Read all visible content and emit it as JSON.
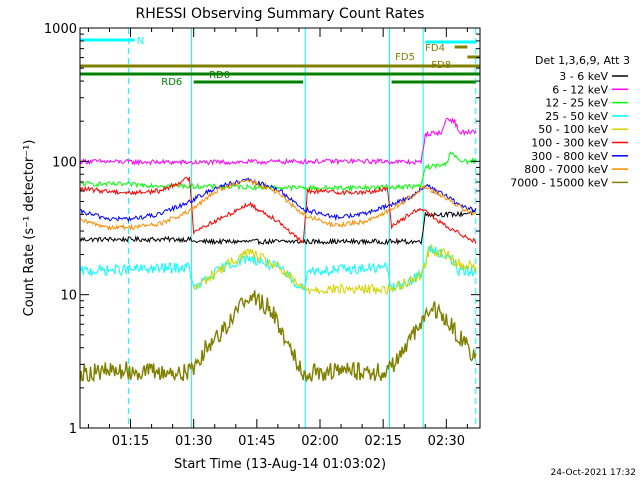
{
  "chart_data": {
    "type": "line",
    "title": "RHESSI Observing Summary Count Rates",
    "xlabel": "Start Time (13-Aug-14 01:03:02)",
    "ylabel": "Count Rate (s⁻¹ detector⁻¹)",
    "y_scale": "log",
    "ylim": [
      1,
      1000
    ],
    "xlim": [
      "01:03",
      "02:38"
    ],
    "x_ticks": [
      "01:15",
      "01:30",
      "01:45",
      "02:00",
      "02:15",
      "02:30"
    ],
    "y_ticks": [
      "1",
      "10",
      "100",
      "1000"
    ],
    "grid": false,
    "legend_title": "Det 1,3,6,9, Att 3",
    "legend_placement": "right",
    "timestamp": "24-Oct-2021 17:32",
    "colors": {
      "3-6": "#000000",
      "6-12": "#ff00ff",
      "12-25": "#00ff00",
      "25-50": "#00ffff",
      "50-100": "#d4d400",
      "100-300": "#ff0000",
      "300-800": "#0000ff",
      "800-7000": "#ff8c00",
      "7000-15000": "#808000",
      "flag_cyan": "#00ffff",
      "flag_olive": "#808000",
      "flag_green": "#007f00"
    },
    "series": [
      {
        "name": "3 - 6 keV",
        "key": "3-6",
        "points": [
          [
            "01:03",
            26
          ],
          [
            "01:29",
            26
          ],
          [
            "01:30",
            25
          ],
          [
            "02:24",
            25
          ],
          [
            "02:25",
            40
          ],
          [
            "02:33",
            40
          ],
          [
            "02:37",
            42
          ]
        ]
      },
      {
        "name": "6 - 12 keV",
        "key": "6-12",
        "points": [
          [
            "01:03",
            100
          ],
          [
            "01:15",
            99
          ],
          [
            "01:30",
            98
          ],
          [
            "02:00",
            100
          ],
          [
            "02:15",
            100
          ],
          [
            "02:24",
            98
          ],
          [
            "02:25",
            160
          ],
          [
            "02:29",
            165
          ],
          [
            "02:30",
            210
          ],
          [
            "02:32",
            200
          ],
          [
            "02:33",
            165
          ],
          [
            "02:37",
            165
          ]
        ]
      },
      {
        "name": "12 - 25 keV",
        "key": "12-25",
        "points": [
          [
            "01:03",
            68
          ],
          [
            "01:15",
            67
          ],
          [
            "01:30",
            65
          ],
          [
            "02:00",
            63
          ],
          [
            "02:15",
            64
          ],
          [
            "02:24",
            65
          ],
          [
            "02:25",
            90
          ],
          [
            "02:30",
            95
          ],
          [
            "02:31",
            120
          ],
          [
            "02:33",
            100
          ],
          [
            "02:37",
            100
          ]
        ]
      },
      {
        "name": "25 - 50 keV",
        "key": "25-50",
        "points": [
          [
            "01:03",
            15
          ],
          [
            "01:29",
            16
          ],
          [
            "01:30",
            11
          ],
          [
            "01:37",
            16
          ],
          [
            "01:43",
            19
          ],
          [
            "01:50",
            16
          ],
          [
            "01:56",
            11
          ],
          [
            "01:57",
            15
          ],
          [
            "02:16",
            16
          ],
          [
            "02:17",
            11
          ],
          [
            "02:24",
            14
          ],
          [
            "02:26",
            22
          ],
          [
            "02:30",
            20
          ],
          [
            "02:33",
            15
          ],
          [
            "02:37",
            15
          ]
        ]
      },
      {
        "name": "50 - 100 keV",
        "key": "50-100",
        "points": [
          [
            "01:30",
            11
          ],
          [
            "01:37",
            16
          ],
          [
            "01:43",
            21
          ],
          [
            "01:50",
            16
          ],
          [
            "01:56",
            11
          ],
          [
            "02:17",
            11
          ],
          [
            "02:24",
            14
          ],
          [
            "02:26",
            22
          ],
          [
            "02:30",
            20
          ],
          [
            "02:33",
            17
          ],
          [
            "02:37",
            16
          ]
        ]
      },
      {
        "name": "100 - 300 keV",
        "key": "100-300",
        "points": [
          [
            "01:03",
            62
          ],
          [
            "01:15",
            58
          ],
          [
            "01:22",
            60
          ],
          [
            "01:29",
            75
          ],
          [
            "01:30",
            30
          ],
          [
            "01:37",
            38
          ],
          [
            "01:43",
            48
          ],
          [
            "01:50",
            36
          ],
          [
            "01:56",
            24
          ],
          [
            "01:57",
            60
          ],
          [
            "02:10",
            58
          ],
          [
            "02:16",
            62
          ],
          [
            "02:17",
            33
          ],
          [
            "02:24",
            45
          ],
          [
            "02:27",
            38
          ],
          [
            "02:30",
            32
          ],
          [
            "02:34",
            28
          ],
          [
            "02:37",
            25
          ]
        ]
      },
      {
        "name": "300 - 800 keV",
        "key": "300-800",
        "points": [
          [
            "01:03",
            42
          ],
          [
            "01:10",
            37
          ],
          [
            "01:15",
            37
          ],
          [
            "01:22",
            40
          ],
          [
            "01:29",
            50
          ],
          [
            "01:36",
            65
          ],
          [
            "01:43",
            72
          ],
          [
            "01:50",
            62
          ],
          [
            "01:56",
            44
          ],
          [
            "02:03",
            38
          ],
          [
            "02:10",
            40
          ],
          [
            "02:16",
            46
          ],
          [
            "02:22",
            55
          ],
          [
            "02:25",
            66
          ],
          [
            "02:30",
            55
          ],
          [
            "02:34",
            45
          ],
          [
            "02:37",
            43
          ]
        ]
      },
      {
        "name": "800 - 7000 keV",
        "key": "800-7000",
        "points": [
          [
            "01:03",
            36
          ],
          [
            "01:10",
            32
          ],
          [
            "01:15",
            32
          ],
          [
            "01:22",
            34
          ],
          [
            "01:29",
            42
          ],
          [
            "01:36",
            62
          ],
          [
            "01:43",
            72
          ],
          [
            "01:50",
            58
          ],
          [
            "01:56",
            40
          ],
          [
            "02:03",
            33
          ],
          [
            "02:10",
            35
          ],
          [
            "02:16",
            42
          ],
          [
            "02:22",
            55
          ],
          [
            "02:25",
            65
          ],
          [
            "02:30",
            52
          ],
          [
            "02:34",
            44
          ],
          [
            "02:37",
            40
          ]
        ]
      },
      {
        "name": "7000 - 15000 keV",
        "key": "7000-15000",
        "points": [
          [
            "01:03",
            2.6
          ],
          [
            "01:14",
            2.7
          ],
          [
            "01:24",
            2.6
          ],
          [
            "01:29",
            2.6
          ],
          [
            "01:33",
            4
          ],
          [
            "01:38",
            6
          ],
          [
            "01:43",
            10
          ],
          [
            "01:48",
            8
          ],
          [
            "01:53",
            4
          ],
          [
            "01:56",
            2.6
          ],
          [
            "02:06",
            2.7
          ],
          [
            "02:16",
            2.6
          ],
          [
            "02:20",
            4
          ],
          [
            "02:24",
            6
          ],
          [
            "02:27",
            8
          ],
          [
            "02:31",
            6
          ],
          [
            "02:35",
            4
          ],
          [
            "02:37",
            3.5
          ]
        ]
      }
    ],
    "annotations": {
      "labels": [
        "N",
        "FD4",
        "FD5",
        "FD8",
        "RD0",
        "RD6"
      ],
      "vertical_lines_solid": [
        "01:03",
        "01:29.5",
        "01:56.5",
        "02:16.5",
        "02:24.5"
      ],
      "vertical_lines_dashed": [
        "01:14.5",
        "02:37"
      ]
    }
  }
}
